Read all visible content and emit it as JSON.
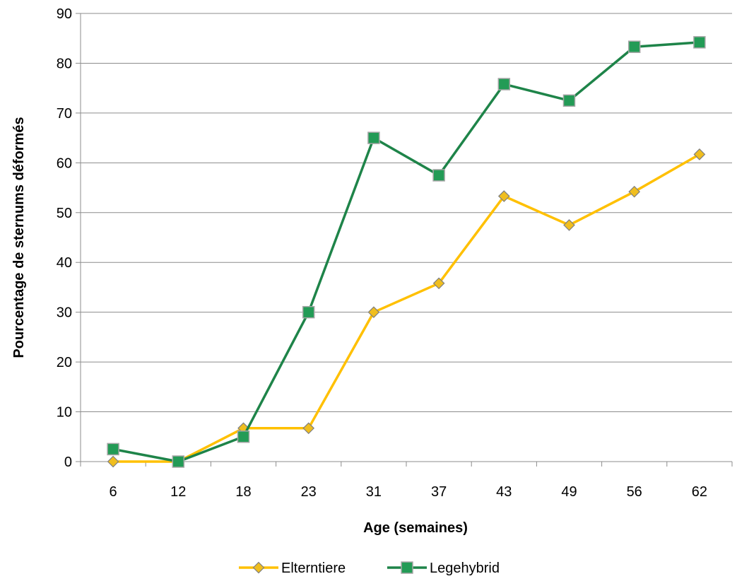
{
  "chart_data": {
    "type": "line",
    "title": "",
    "xlabel": "Age (semaines)",
    "ylabel": "Pourcentage de sternums déformés",
    "categories": [
      "6",
      "12",
      "18",
      "23",
      "31",
      "37",
      "43",
      "49",
      "56",
      "62"
    ],
    "ylim": [
      0,
      90
    ],
    "yticks": [
      0,
      10,
      20,
      30,
      40,
      50,
      60,
      70,
      80,
      90
    ],
    "grid": "horizontal",
    "legend_position": "bottom",
    "series": [
      {
        "name": "Elterntiere",
        "marker": "diamond",
        "color": "#FFC000",
        "marker_fill": "#F0BE1E",
        "marker_edge": "#7F7F7F",
        "values": [
          0,
          0,
          6.7,
          6.7,
          30,
          35.8,
          53.3,
          47.5,
          54.2,
          61.7
        ]
      },
      {
        "name": "Legehybrid",
        "marker": "square",
        "color": "#1E8449",
        "marker_fill": "#239B56",
        "marker_edge": "#A6A6A6",
        "values": [
          2.5,
          0,
          5,
          30,
          65,
          57.5,
          75.8,
          72.5,
          83.3,
          84.2
        ]
      }
    ]
  }
}
